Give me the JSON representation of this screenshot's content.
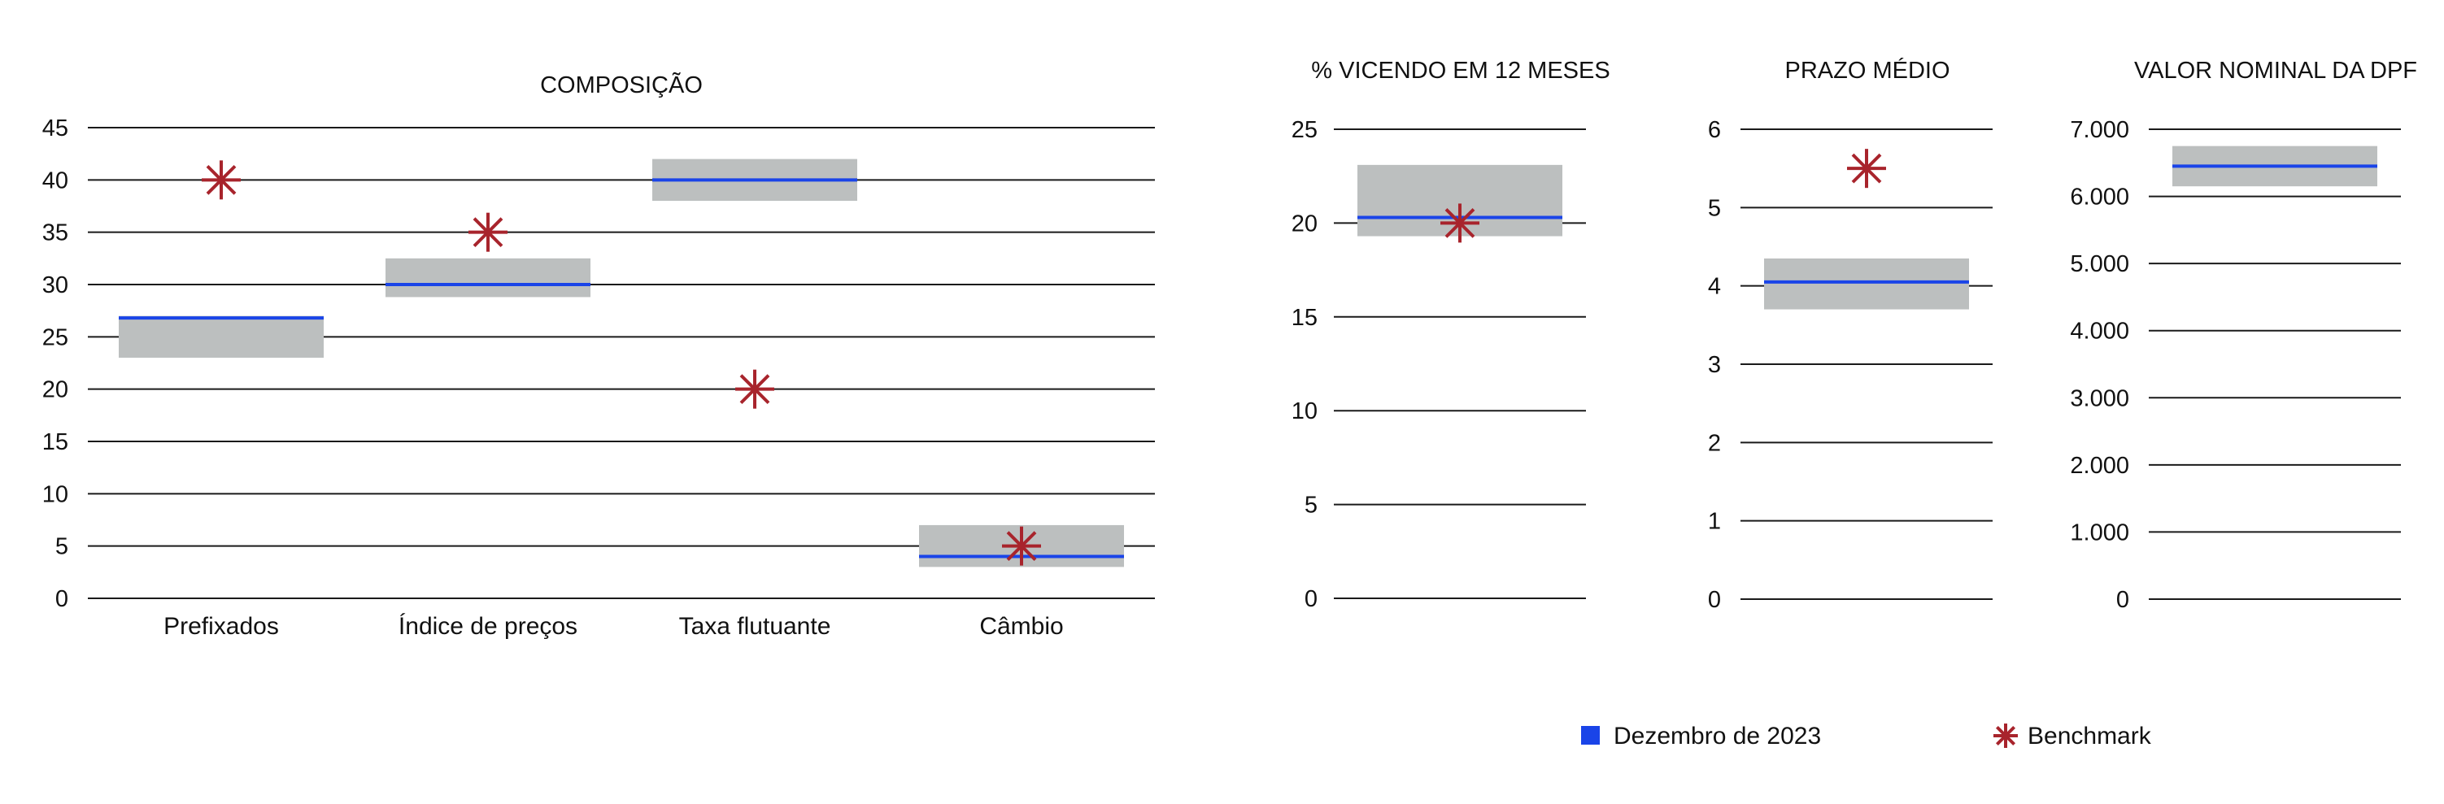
{
  "colors": {
    "range": "#bcbfbf",
    "december": "#1a44e8",
    "benchmark": "#a8242c",
    "grid": "#1a1a1a"
  },
  "legend": {
    "december_label": "Dezembro de 2023",
    "benchmark_label": "Benchmark",
    "december_icon": "blue-square-icon",
    "benchmark_icon": "asterisk-icon"
  },
  "chart_data": [
    {
      "type": "range-bar",
      "title": "COMPOSIÇÃO",
      "ylim": [
        0,
        45
      ],
      "yticks": [
        0,
        5,
        10,
        15,
        20,
        25,
        30,
        35,
        40,
        45
      ],
      "categories": [
        "Prefixados",
        "Índice de preços",
        "Taxa flutuante",
        "Câmbio"
      ],
      "series": [
        {
          "name": "Dezembro de 2023",
          "values": [
            26.8,
            30.0,
            40.0,
            4.0
          ]
        },
        {
          "name": "Benchmark",
          "values": [
            40,
            35,
            20,
            5
          ]
        }
      ],
      "range_low": [
        23,
        28.8,
        38,
        3
      ],
      "range_high": [
        27,
        32.5,
        42,
        7
      ],
      "grid": true
    },
    {
      "type": "range-bar",
      "title": "% VICENDO EM 12 MESES",
      "ylim": [
        0,
        25
      ],
      "yticks": [
        0,
        5,
        10,
        15,
        20,
        25
      ],
      "categories": [
        ""
      ],
      "series": [
        {
          "name": "Dezembro de 2023",
          "values": [
            20.3
          ]
        },
        {
          "name": "Benchmark",
          "values": [
            20
          ]
        }
      ],
      "range_low": [
        19.3
      ],
      "range_high": [
        23.1
      ],
      "grid": true
    },
    {
      "type": "range-bar",
      "title": "PRAZO MÉDIO",
      "ylim": [
        0,
        6
      ],
      "yticks": [
        0,
        1,
        2,
        3,
        4,
        5,
        6
      ],
      "categories": [
        ""
      ],
      "series": [
        {
          "name": "Dezembro de 2023",
          "values": [
            4.05
          ]
        },
        {
          "name": "Benchmark",
          "values": [
            5.5
          ]
        }
      ],
      "range_low": [
        3.7
      ],
      "range_high": [
        4.35
      ],
      "grid": true
    },
    {
      "type": "range-bar",
      "title": "VALOR NOMINAL DA DPF",
      "ylim": [
        0,
        7000
      ],
      "ytick_labels": [
        "0",
        "1.000",
        "2.000",
        "3.000",
        "4.000",
        "5.000",
        "6.000",
        "7.000"
      ],
      "yticks": [
        0,
        1000,
        2000,
        3000,
        4000,
        5000,
        6000,
        7000
      ],
      "categories": [
        ""
      ],
      "series": [
        {
          "name": "Dezembro de 2023",
          "values": [
            6450
          ]
        }
      ],
      "range_low": [
        6150
      ],
      "range_high": [
        6750
      ],
      "grid": true
    }
  ]
}
